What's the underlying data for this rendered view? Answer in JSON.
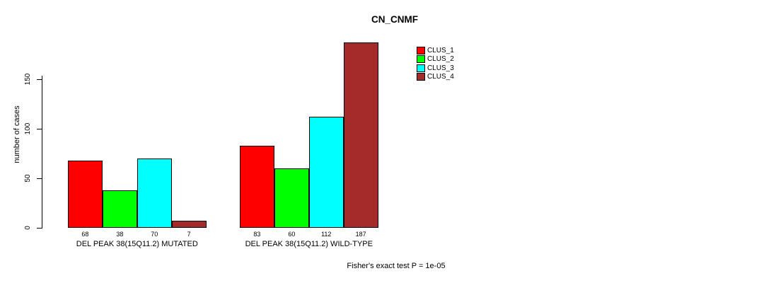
{
  "footer": {
    "annotation": "Fisher's exact test P = 1e-05"
  },
  "chart_data": {
    "type": "bar",
    "title": "CN_CNMF",
    "xlabel": "",
    "ylabel": "number of cases",
    "categories": [
      "DEL PEAK 38(15Q11.2) MUTATED",
      "DEL PEAK 38(15Q11.2) WILD-TYPE"
    ],
    "series": [
      {
        "name": "CLUS_1",
        "color": "#ff0000",
        "values": [
          68,
          83
        ]
      },
      {
        "name": "CLUS_2",
        "color": "#00ff00",
        "values": [
          38,
          60
        ]
      },
      {
        "name": "CLUS_3",
        "color": "#00ffff",
        "values": [
          70,
          112
        ]
      },
      {
        "name": "CLUS_4",
        "color": "#a52a2a",
        "values": [
          7,
          187
        ]
      }
    ],
    "yticks": [
      0,
      50,
      100,
      150
    ],
    "ylim": [
      0,
      190
    ],
    "grid": false,
    "legend_position": "top-right-of-plot",
    "annotation": "Fisher's exact test P = 1e-05"
  }
}
